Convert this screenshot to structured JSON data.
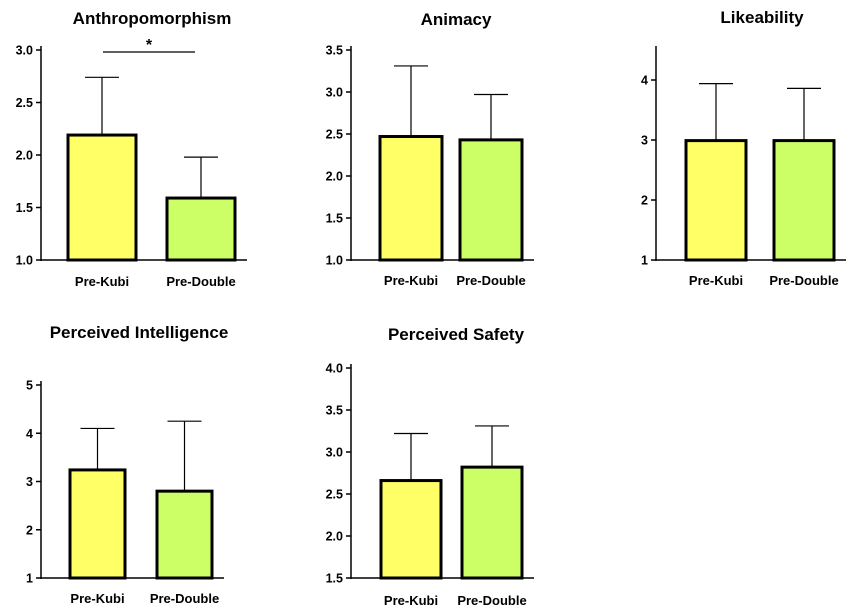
{
  "colors": {
    "kubi": "#ffff66",
    "double": "#ccff66",
    "stroke": "#000000"
  },
  "chart_data": [
    {
      "type": "bar",
      "title": "Anthropomorphism",
      "categories": [
        "Pre-Kubi",
        "Pre-Double"
      ],
      "values": [
        2.19,
        1.59
      ],
      "error_upper": [
        2.74,
        1.98
      ],
      "ylim": [
        1.0,
        3.0
      ],
      "yticks": [
        "1.0",
        "1.5",
        "2.0",
        "2.5",
        "3.0"
      ],
      "significance": "*"
    },
    {
      "type": "bar",
      "title": "Animacy",
      "categories": [
        "Pre-Kubi",
        "Pre-Double"
      ],
      "values": [
        2.47,
        2.43
      ],
      "error_upper": [
        3.31,
        2.97
      ],
      "ylim": [
        1.0,
        3.5
      ],
      "yticks": [
        "1.0",
        "1.5",
        "2.0",
        "2.5",
        "3.0",
        "3.5"
      ]
    },
    {
      "type": "bar",
      "title": "Likeability",
      "categories": [
        "Pre-Kubi",
        "Pre-Double"
      ],
      "values": [
        2.99,
        2.99
      ],
      "error_upper": [
        3.94,
        3.86
      ],
      "ylim": [
        1,
        4.5
      ],
      "yticks": [
        "1",
        "2",
        "3",
        "4"
      ]
    },
    {
      "type": "bar",
      "title": "Perceived Intelligence",
      "categories": [
        "Pre-Kubi",
        "Pre-Double"
      ],
      "values": [
        3.24,
        2.8
      ],
      "error_upper": [
        4.1,
        4.25
      ],
      "ylim": [
        1,
        5
      ],
      "yticks": [
        "1",
        "2",
        "3",
        "4",
        "5"
      ]
    },
    {
      "type": "bar",
      "title": "Perceived Safety",
      "categories": [
        "Pre-Kubi",
        "Pre-Double"
      ],
      "values": [
        2.66,
        2.82
      ],
      "error_upper": [
        3.22,
        3.31
      ],
      "ylim": [
        1.5,
        4.0
      ],
      "yticks": [
        "1.5",
        "2.0",
        "2.5",
        "3.0",
        "3.5",
        "4.0"
      ]
    }
  ]
}
